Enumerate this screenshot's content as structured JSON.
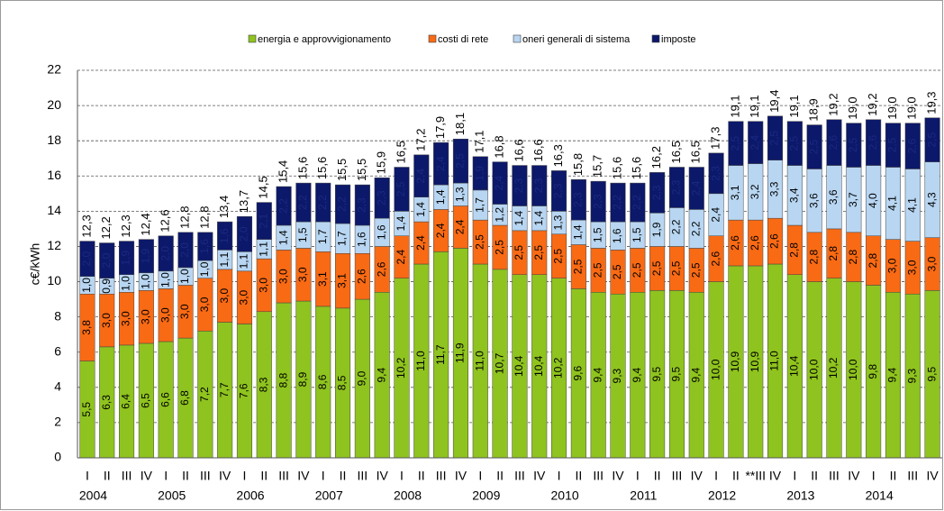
{
  "chart_data": {
    "type": "stacked-bar",
    "y_label": "c€/kWh",
    "categories": [
      "I",
      "II",
      "III",
      "IV",
      "I",
      "II",
      "III",
      "IV",
      "I",
      "II",
      "III",
      "IV",
      "I",
      "II",
      "III",
      "IV",
      "I",
      "II",
      "III",
      "IV",
      "I",
      "II",
      "III",
      "IV",
      "I",
      "II",
      "III",
      "IV",
      "I",
      "II",
      "III",
      "IV",
      "I",
      "II",
      "**III",
      "IV",
      "I",
      "II",
      "III",
      "IV",
      "I",
      "II",
      "III",
      "IV"
    ],
    "years": [
      "2004",
      "2005",
      "2006",
      "2007",
      "2008",
      "2009",
      "2010",
      "2011",
      "2012",
      "2013",
      "2014"
    ],
    "ylim": [
      0,
      22
    ],
    "yticks": [
      0,
      2,
      4,
      6,
      8,
      10,
      12,
      14,
      16,
      18,
      20,
      22
    ],
    "grid": true,
    "legend": "top",
    "series": [
      {
        "name": "energia e approvvigionamento",
        "color": "#8fc31f",
        "values": [
          5.5,
          6.3,
          6.4,
          6.5,
          6.6,
          6.8,
          7.2,
          7.7,
          7.6,
          8.3,
          8.8,
          8.9,
          8.6,
          8.5,
          9.0,
          9.4,
          10.2,
          11.0,
          11.7,
          11.9,
          11.0,
          10.7,
          10.4,
          10.4,
          10.2,
          9.6,
          9.4,
          9.3,
          9.4,
          9.5,
          9.5,
          9.4,
          10.0,
          10.9,
          10.9,
          11.0,
          10.4,
          10.0,
          10.2,
          10.0,
          9.8,
          9.4,
          9.3,
          9.5
        ],
        "value_labels": [
          "5,5",
          "6,3",
          "6,4",
          "6,5",
          "6,6",
          "6,8",
          "7,2",
          "7,7",
          "7,6",
          "8,3",
          "8,8",
          "8,9",
          "8,6",
          "8,5",
          "9,0",
          "9,4",
          "10,2",
          "11,0",
          "11,7",
          "11,9",
          "11,0",
          "10,7",
          "10,4",
          "10,4",
          "10,2",
          "9,6",
          "9,4",
          "9,3",
          "9,4",
          "9,5",
          "9,5",
          "9,4",
          "10,0",
          "10,9",
          "10,9",
          "11,0",
          "10,4",
          "10,0",
          "10,2",
          "10,0",
          "9,8",
          "9,4",
          "9,3",
          "9,5"
        ]
      },
      {
        "name": "costi di rete",
        "color": "#f96a14",
        "values": [
          3.8,
          3.0,
          3.0,
          3.0,
          3.0,
          3.0,
          3.0,
          3.0,
          3.0,
          3.0,
          3.0,
          3.0,
          3.1,
          3.1,
          2.6,
          2.6,
          2.4,
          2.4,
          2.4,
          2.4,
          2.5,
          2.5,
          2.5,
          2.5,
          2.5,
          2.5,
          2.5,
          2.5,
          2.5,
          2.5,
          2.5,
          2.5,
          2.6,
          2.6,
          2.6,
          2.6,
          2.8,
          2.8,
          2.8,
          2.8,
          2.8,
          3.0,
          3.0,
          3.0
        ],
        "value_labels": [
          "3,8",
          "3,0",
          "3,0",
          "3,0",
          "3,0",
          "3,0",
          "3,0",
          "3,0",
          "3,0",
          "3,0",
          "3,0",
          "3,0",
          "3,1",
          "3,1",
          "2,6",
          "2,6",
          "2,4",
          "2,4",
          "2,4",
          "2,4",
          "2,5",
          "2,5",
          "2,5",
          "2,5",
          "2,5",
          "2,5",
          "2,5",
          "2,5",
          "2,5",
          "2,5",
          "2,5",
          "2,5",
          "2,6",
          "2,6",
          "2,6",
          "2,6",
          "2,8",
          "2,8",
          "2,8",
          "2,8",
          "2,8",
          "3,0",
          "3,0",
          "3,0"
        ]
      },
      {
        "name": "oneri generali di sistema",
        "color": "#b8d6f2",
        "values": [
          1.0,
          0.9,
          1.0,
          1.0,
          1.0,
          1.0,
          1.0,
          1.1,
          1.1,
          1.1,
          1.4,
          1.5,
          1.7,
          1.7,
          1.6,
          1.6,
          1.4,
          1.4,
          1.4,
          1.3,
          1.7,
          1.2,
          1.4,
          1.4,
          1.3,
          1.4,
          1.5,
          1.6,
          1.5,
          1.9,
          2.2,
          2.2,
          2.4,
          3.1,
          3.2,
          3.3,
          3.4,
          3.6,
          3.6,
          3.7,
          4.0,
          4.1,
          4.1,
          4.3
        ],
        "value_labels": [
          "1,0",
          "0,9",
          "1,0",
          "1,0",
          "1,0",
          "1,0",
          "1,0",
          "1,1",
          "1,1",
          "1,1",
          "1,4",
          "1,5",
          "1,7",
          "1,7",
          "1,6",
          "1,6",
          "1,4",
          "1,4",
          "1,4",
          "1,3",
          "1,7",
          "1,2",
          "1,4",
          "1,4",
          "1,3",
          "1,4",
          "1,5",
          "1,6",
          "1,5",
          "1,9",
          "2,2",
          "2,2",
          "2,4",
          "3,1",
          "3,2",
          "3,3",
          "3,4",
          "3,6",
          "3,6",
          "3,7",
          "4,0",
          "4,1",
          "4,1",
          "4,3"
        ]
      },
      {
        "name": "imposte",
        "color": "#0c186a",
        "values": [
          2.0,
          2.0,
          1.9,
          1.9,
          2.0,
          2.0,
          1.6,
          1.6,
          2.0,
          2.1,
          2.2,
          2.2,
          2.2,
          2.2,
          2.3,
          2.3,
          2.5,
          2.4,
          2.4,
          2.5,
          1.9,
          2.4,
          2.3,
          2.3,
          2.3,
          2.3,
          2.3,
          2.2,
          2.2,
          2.3,
          2.3,
          2.4,
          2.3,
          2.5,
          2.4,
          2.5,
          2.5,
          2.5,
          2.6,
          2.5,
          2.6,
          2.5,
          2.6,
          2.5
        ],
        "value_labels": [
          "2,0",
          "2,0",
          "1,9",
          "1,9",
          "2,0",
          "2,0",
          "1,6",
          "1,6",
          "2,0",
          "2,1",
          "2,2",
          "2,2",
          "2,2",
          "2,2",
          "2,3",
          "2,3",
          "2,5",
          "2,4",
          "2,4",
          "2,5",
          "1,9",
          "2,4",
          "2,3",
          "2,3",
          "2,3",
          "2,3",
          "2,3",
          "2,2",
          "2,2",
          "2,3",
          "2,3",
          "2,4",
          "2,3",
          "2,5",
          "2,4",
          "2,5",
          "2,5",
          "2,5",
          "2,6",
          "2,5",
          "2,6",
          "2,5",
          "2,6",
          "2,5"
        ]
      }
    ],
    "totals": {
      "values": [
        12.3,
        12.2,
        12.3,
        12.4,
        12.6,
        12.8,
        12.8,
        13.4,
        13.7,
        14.5,
        15.4,
        15.6,
        15.6,
        15.5,
        15.5,
        15.9,
        16.5,
        17.2,
        17.9,
        18.1,
        17.1,
        16.8,
        16.6,
        16.6,
        16.3,
        15.8,
        15.7,
        15.6,
        15.6,
        16.2,
        16.5,
        16.5,
        17.3,
        19.1,
        19.1,
        19.4,
        19.1,
        18.9,
        19.2,
        19.0,
        19.2,
        19.0,
        19.0,
        19.3
      ],
      "value_labels": [
        "12,3",
        "12,2",
        "12,3",
        "12,4",
        "12,6",
        "12,8",
        "12,8",
        "13,4",
        "13,7",
        "14,5",
        "15,4",
        "15,6",
        "15,6",
        "15,5",
        "15,5",
        "15,9",
        "16,5",
        "17,2",
        "17,9",
        "18,1",
        "17,1",
        "16,8",
        "16,6",
        "16,6",
        "16,3",
        "15,8",
        "15,7",
        "15,6",
        "15,6",
        "16,2",
        "16,5",
        "16,5",
        "17,3",
        "19,1",
        "19,1",
        "19,4",
        "19,1",
        "18,9",
        "19,2",
        "19,0",
        "19,2",
        "19,0",
        "19,0",
        "19,3"
      ]
    }
  }
}
